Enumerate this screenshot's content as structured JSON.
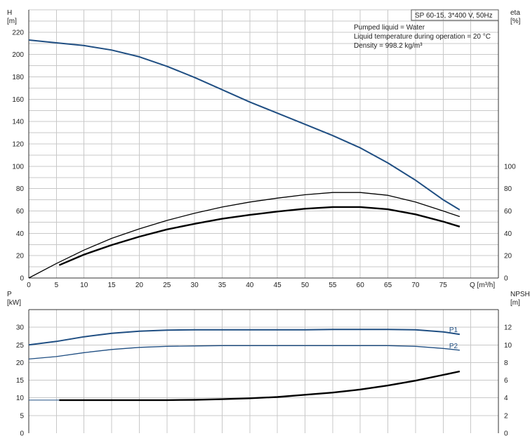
{
  "chart_data": [
    {
      "type": "line",
      "title": "SP 60-15, 3*400 V, 50Hz",
      "annotations": [
        "Pumped liquid = Water",
        "Liquid temperature during operation = 20 °C",
        "Density = 998.2 kg/m³"
      ],
      "xlabel": "Q [m³/h]",
      "xlim": [
        0,
        85
      ],
      "xticks": [
        0,
        5,
        10,
        15,
        20,
        25,
        30,
        35,
        40,
        45,
        50,
        55,
        60,
        65,
        70,
        75
      ],
      "ylabel": "H\n[m]",
      "ylim": [
        0,
        240
      ],
      "yticks": [
        0,
        20,
        40,
        60,
        80,
        100,
        120,
        140,
        160,
        180,
        200,
        220
      ],
      "y2label": "eta\n[%]",
      "y2lim": [
        0,
        240
      ],
      "y2ticks": [
        0,
        20,
        40,
        60,
        80,
        100
      ],
      "grid": true,
      "series": [
        {
          "axis": "left",
          "color": "#1f4e82",
          "x": [
            0,
            5,
            10,
            15,
            20,
            25,
            30,
            35,
            40,
            45,
            50,
            55,
            60,
            65,
            70,
            75,
            78
          ],
          "values": [
            213,
            210.5,
            208,
            204,
            198,
            189.5,
            179.5,
            168.5,
            157.5,
            147.5,
            137.5,
            127.5,
            116.5,
            103,
            87.5,
            70,
            61
          ]
        },
        {
          "axis": "right",
          "color": "#000000",
          "x": [
            0,
            5,
            10,
            15,
            20,
            25,
            30,
            35,
            40,
            45,
            50,
            55,
            60,
            65,
            70,
            75,
            78
          ],
          "values": [
            0,
            13,
            25,
            35.5,
            44,
            51.5,
            58,
            63.5,
            68,
            71.5,
            74.5,
            76.5,
            76.5,
            74,
            68,
            60,
            55
          ]
        },
        {
          "axis": "right",
          "color": "#000000",
          "x": [
            5.5,
            10,
            15,
            20,
            25,
            30,
            35,
            40,
            45,
            50,
            55,
            60,
            65,
            70,
            75,
            78
          ],
          "values": [
            11.5,
            21,
            29.5,
            37,
            43.5,
            48.5,
            53,
            56.5,
            59.5,
            62,
            63.5,
            63.5,
            61.5,
            57,
            50.5,
            46
          ]
        }
      ]
    },
    {
      "type": "line",
      "xlim": [
        0,
        85
      ],
      "ylabel": "P\n[kW]",
      "ylim": [
        0,
        35
      ],
      "yticks": [
        0,
        5,
        10,
        15,
        20,
        25,
        30
      ],
      "y2label": "NPSH\n[m]",
      "y2lim": [
        0,
        14
      ],
      "y2ticks": [
        0,
        2,
        4,
        6,
        8,
        10,
        12
      ],
      "grid": true,
      "series": [
        {
          "name": "P1",
          "axis": "left",
          "color": "#1f4e82",
          "x": [
            0,
            5,
            10,
            15,
            20,
            25,
            30,
            35,
            40,
            45,
            50,
            55,
            60,
            65,
            70,
            75,
            78
          ],
          "values": [
            25,
            26,
            27.3,
            28.3,
            28.9,
            29.2,
            29.3,
            29.3,
            29.3,
            29.3,
            29.3,
            29.4,
            29.4,
            29.4,
            29.3,
            28.7,
            28
          ]
        },
        {
          "name": "P2",
          "axis": "left",
          "color": "#1f4e82",
          "x": [
            0,
            5,
            10,
            15,
            20,
            25,
            30,
            35,
            40,
            45,
            50,
            55,
            60,
            65,
            70,
            75,
            78
          ],
          "values": [
            21,
            21.7,
            22.8,
            23.7,
            24.3,
            24.6,
            24.7,
            24.8,
            24.8,
            24.8,
            24.8,
            24.8,
            24.8,
            24.8,
            24.6,
            24,
            23.5
          ]
        },
        {
          "axis": "right",
          "color": "#000000",
          "x": [
            5.5,
            10,
            15,
            20,
            25,
            30,
            35,
            40,
            45,
            50,
            55,
            60,
            65,
            70,
            75,
            78
          ],
          "values": [
            3.75,
            3.75,
            3.75,
            3.75,
            3.75,
            3.78,
            3.85,
            3.95,
            4.1,
            4.35,
            4.6,
            4.95,
            5.4,
            5.95,
            6.6,
            7
          ]
        },
        {
          "axis": "right",
          "color": "#1f4e82",
          "x": [
            0,
            5.5
          ],
          "values": [
            3.75,
            3.75
          ]
        }
      ]
    }
  ]
}
